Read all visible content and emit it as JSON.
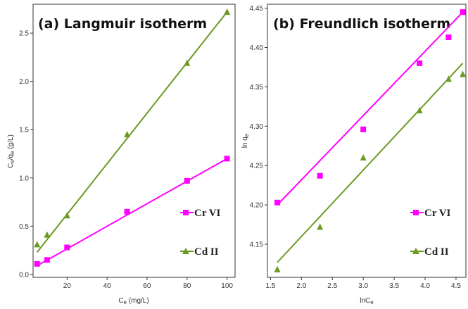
{
  "colors": {
    "cr": "#ff00ff",
    "cd": "#6a9a1f",
    "axis": "#333333"
  },
  "chart_data": [
    {
      "type": "scatter",
      "title": "(a) Langmuir isotherm",
      "xlabel": "Ce (mg/L)",
      "ylabel": "Ce/qe (g/L)",
      "xlim": [
        3,
        104
      ],
      "ylim": [
        -0.03,
        2.8
      ],
      "xticks": [
        "20",
        "40",
        "60",
        "80",
        "100"
      ],
      "xtick_values": [
        20,
        40,
        60,
        80,
        100
      ],
      "yticks": [
        "0.0",
        "0.5",
        "1.0",
        "1.5",
        "2.0",
        "2.5"
      ],
      "ytick_values": [
        0.0,
        0.5,
        1.0,
        1.5,
        2.0,
        2.5
      ],
      "legend": "right",
      "series": [
        {
          "name": "Cr VI",
          "marker": "square",
          "x": [
            5,
            10,
            20,
            50,
            80,
            100
          ],
          "y": [
            0.11,
            0.15,
            0.28,
            0.65,
            0.97,
            1.2
          ],
          "fit": [
            [
              5,
              0.09
            ],
            [
              100,
              1.2
            ]
          ]
        },
        {
          "name": "Cd II",
          "marker": "triangle",
          "x": [
            5,
            10,
            20,
            50,
            80,
            100
          ],
          "y": [
            0.31,
            0.41,
            0.61,
            1.45,
            2.19,
            2.72
          ],
          "fit": [
            [
              5,
              0.23
            ],
            [
              100,
              2.72
            ]
          ]
        }
      ]
    },
    {
      "type": "scatter",
      "title": "(b) Freundlich isotherm",
      "xlabel": "lnCe",
      "ylabel": "ln qe",
      "xlim": [
        1.45,
        4.66
      ],
      "ylim": [
        4.108,
        4.455
      ],
      "xticks": [
        "1.5",
        "2.0",
        "2.5",
        "3.0",
        "3.5",
        "4.0",
        "4.5"
      ],
      "xtick_values": [
        1.5,
        2.0,
        2.5,
        3.0,
        3.5,
        4.0,
        4.5
      ],
      "yticks": [
        "4.15",
        "4.20",
        "4.25",
        "4.30",
        "4.35",
        "4.40",
        "4.45"
      ],
      "ytick_values": [
        4.15,
        4.2,
        4.25,
        4.3,
        4.35,
        4.4,
        4.45
      ],
      "legend": "right",
      "series": [
        {
          "name": "Cr VI",
          "marker": "square",
          "x": [
            1.61,
            2.3,
            3.0,
            3.91,
            4.38,
            4.61
          ],
          "y": [
            4.203,
            4.237,
            4.296,
            4.38,
            4.413,
            4.445
          ],
          "fit": [
            [
              1.61,
              4.2
            ],
            [
              4.61,
              4.445
            ]
          ]
        },
        {
          "name": "Cd II",
          "marker": "triangle",
          "x": [
            1.61,
            2.3,
            3.0,
            3.91,
            4.38,
            4.61
          ],
          "y": [
            4.118,
            4.172,
            4.26,
            4.32,
            4.36,
            4.366
          ],
          "fit": [
            [
              1.61,
              4.127
            ],
            [
              4.61,
              4.38
            ]
          ]
        }
      ]
    }
  ]
}
